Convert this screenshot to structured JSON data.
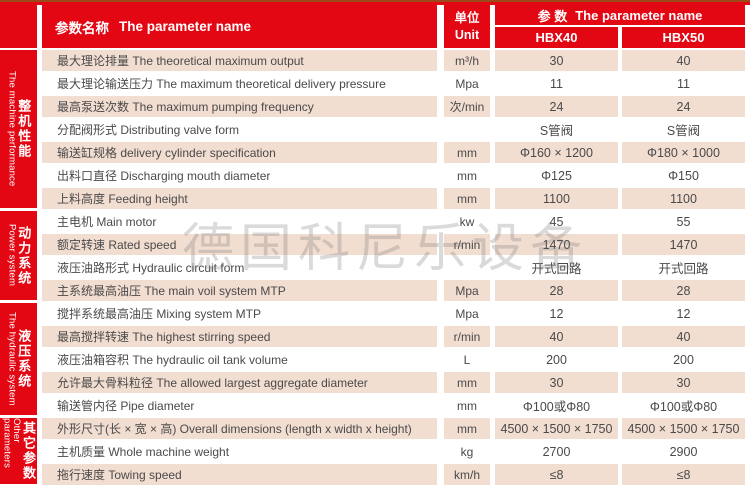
{
  "header": {
    "param_name_zh": "参数名称",
    "param_name_en": "The parameter name",
    "unit_zh": "单位",
    "unit_en": "Unit",
    "group_zh": "参 数",
    "group_en": "The parameter name",
    "models": [
      "HBX40",
      "HBX50"
    ]
  },
  "sections": [
    {
      "en": "The machine performance",
      "zh": "整机性能",
      "row_span": 7
    },
    {
      "en": "Power system",
      "zh": "动力系统",
      "row_span": 4
    },
    {
      "en": "The hydraulic system",
      "zh": "液压系统",
      "row_span": 5
    },
    {
      "en": "Other parameters",
      "zh": "其它参数",
      "row_span": 3
    }
  ],
  "rows": [
    {
      "param": "最大理论排量 The theoretical maximum output",
      "unit": "m³/h",
      "hbx40": "30",
      "hbx50": "40"
    },
    {
      "param": "最大理论输送压力  The maximum theoretical delivery pressure",
      "unit": "Mpa",
      "hbx40": "11",
      "hbx50": "11"
    },
    {
      "param": "最高泵送次数 The maximum pumping frequency",
      "unit": "次/min",
      "hbx40": "24",
      "hbx50": "24"
    },
    {
      "param": "分配阀形式 Distributing valve form",
      "unit": "",
      "hbx40": "S管阀",
      "hbx50": "S管阀"
    },
    {
      "param": "输送缸规格 delivery cylinder specification",
      "unit": "mm",
      "hbx40": "Φ160 × 1200",
      "hbx50": "Φ180 × 1000"
    },
    {
      "param": "出料口直径 Discharging mouth diameter",
      "unit": "mm",
      "hbx40": "Φ125",
      "hbx50": "Φ150"
    },
    {
      "param": "上料高度 Feeding height",
      "unit": "mm",
      "hbx40": "1100",
      "hbx50": "1100"
    },
    {
      "param": "主电机 Main motor",
      "unit": "kw",
      "hbx40": "45",
      "hbx50": "55"
    },
    {
      "param": "额定转速 Rated speed",
      "unit": "r/min",
      "hbx40": "1470",
      "hbx50": "1470"
    },
    {
      "param": "液压油路形式 Hydraulic circuit form",
      "unit": "",
      "hbx40": "开式回路",
      "hbx50": "开式回路"
    },
    {
      "param": "主系统最高油压 The main voil system MTP",
      "unit": "Mpa",
      "hbx40": "28",
      "hbx50": "28"
    },
    {
      "param": "搅拌系统最高油压 Mixing system MTP",
      "unit": "Mpa",
      "hbx40": "12",
      "hbx50": "12"
    },
    {
      "param": "最高搅拌转速 The highest stirring speed",
      "unit": "r/min",
      "hbx40": "40",
      "hbx50": "40"
    },
    {
      "param": "液压油箱容积 The hydraulic oil tank volume",
      "unit": "L",
      "hbx40": "200",
      "hbx50": "200"
    },
    {
      "param": "允许最大骨料粒径 The allowed largest aggregate diameter",
      "unit": "mm",
      "hbx40": "30",
      "hbx50": "30"
    },
    {
      "param": "输送管内径 Pipe diameter",
      "unit": "mm",
      "hbx40": "Φ100或Φ80",
      "hbx50": "Φ100或Φ80"
    },
    {
      "param": "外形尺寸(长 × 宽 × 高) Overall dimensions (length x width x height)",
      "unit": "mm",
      "hbx40": "4500 × 1500 × 1750",
      "hbx50": "4500 × 1500 × 1750"
    },
    {
      "param": "主机质量 Whole machine weight",
      "unit": "kg",
      "hbx40": "2700",
      "hbx50": "2900"
    },
    {
      "param": "拖行速度 Towing speed",
      "unit": "km/h",
      "hbx40": "≤8",
      "hbx50": "≤8"
    }
  ],
  "watermark": "德国科尼乐设备",
  "colors": {
    "red": "#e30613",
    "pink": "#f2ddd1",
    "text": "#4a4a4a"
  }
}
